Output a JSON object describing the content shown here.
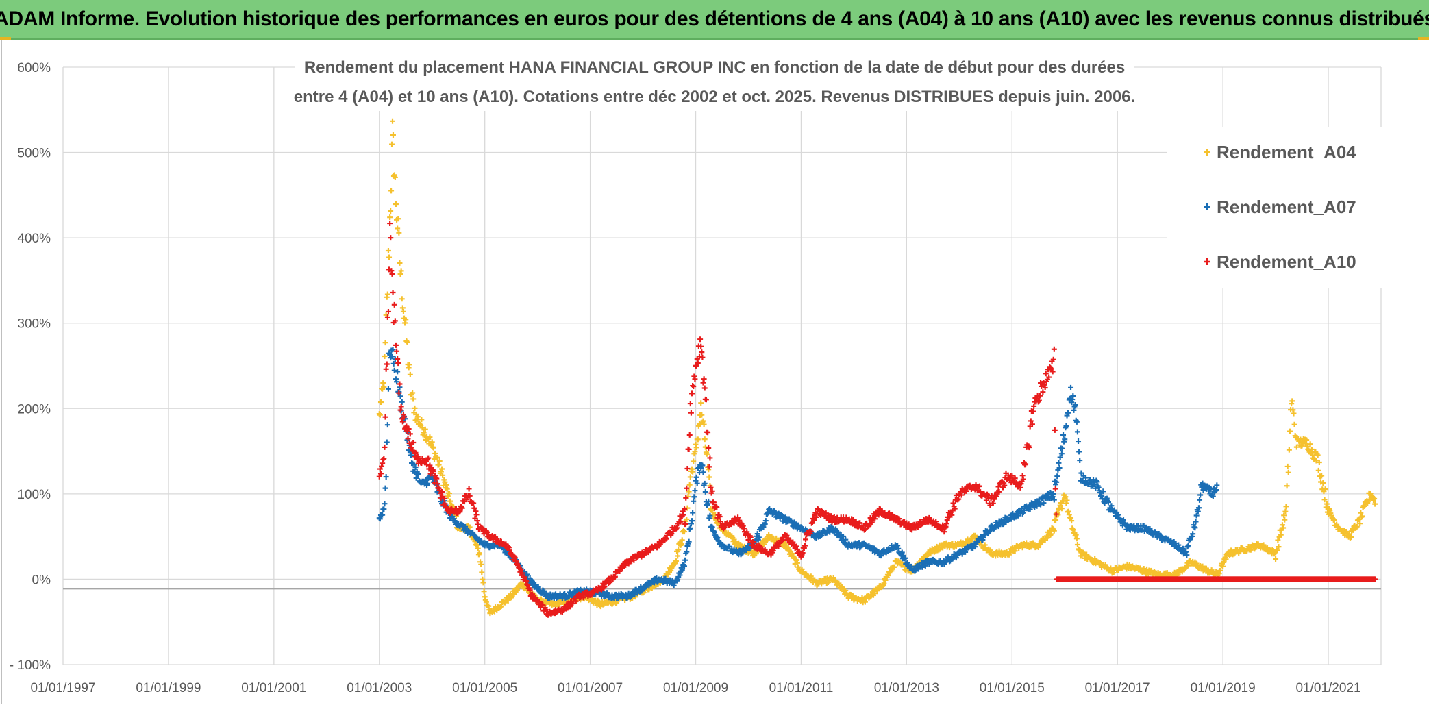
{
  "banner": {
    "title": "ADAM Informe. Evolution historique des performances en euros pour des détentions de 4 ans (A04) à 10 ans (A10) avec les revenus connus distribués"
  },
  "chart_data": {
    "type": "scatter",
    "title_line1": "Rendement du placement HANA FINANCIAL GROUP INC en fonction de la date de début pour des durées",
    "title_line2": "entre 4 (A04) et 10 ans (A10). Cotations entre déc 2002 et oct. 2025. Revenus DISTRIBUES depuis juin. 2006.",
    "xlabel": "",
    "ylabel": "",
    "x_range": [
      "01/01/1997",
      "01/01/2022"
    ],
    "ylim": [
      -100,
      600
    ],
    "y_ticks": [
      "600%",
      "500%",
      "400%",
      "300%",
      "200%",
      "100%",
      "0%",
      "- 100%"
    ],
    "y_tick_values": [
      600,
      500,
      400,
      300,
      200,
      100,
      0,
      -100
    ],
    "x_ticks": [
      "01/01/1997",
      "01/01/1999",
      "01/01/2001",
      "01/01/2003",
      "01/01/2005",
      "01/01/2007",
      "01/01/2009",
      "01/01/2011",
      "01/01/2013",
      "01/01/2015",
      "01/01/2017",
      "01/01/2019",
      "01/01/2021"
    ],
    "x_tick_years": [
      1997,
      1999,
      2001,
      2003,
      2005,
      2007,
      2009,
      2011,
      2013,
      2015,
      2017,
      2019,
      2021
    ],
    "grid": true,
    "legend_position": "top-right",
    "series": [
      {
        "name": "Rendement_A04",
        "color": "#f5c12e",
        "points": [
          [
            2003.0,
            190
          ],
          [
            2003.1,
            240
          ],
          [
            2003.2,
            420
          ],
          [
            2003.25,
            520
          ],
          [
            2003.3,
            460
          ],
          [
            2003.4,
            360
          ],
          [
            2003.5,
            290
          ],
          [
            2003.6,
            220
          ],
          [
            2003.7,
            190
          ],
          [
            2003.9,
            170
          ],
          [
            2004.1,
            140
          ],
          [
            2004.3,
            100
          ],
          [
            2004.5,
            60
          ],
          [
            2004.7,
            60
          ],
          [
            2004.9,
            30
          ],
          [
            2005.0,
            -20
          ],
          [
            2005.1,
            -40
          ],
          [
            2005.3,
            -30
          ],
          [
            2005.5,
            -20
          ],
          [
            2005.7,
            -5
          ],
          [
            2006.0,
            -25
          ],
          [
            2006.3,
            -30
          ],
          [
            2006.6,
            -25
          ],
          [
            2006.9,
            -20
          ],
          [
            2007.2,
            -30
          ],
          [
            2007.5,
            -25
          ],
          [
            2007.8,
            -20
          ],
          [
            2008.1,
            -10
          ],
          [
            2008.4,
            0
          ],
          [
            2008.6,
            20
          ],
          [
            2008.8,
            60
          ],
          [
            2008.9,
            120
          ],
          [
            2009.0,
            150
          ],
          [
            2009.1,
            200
          ],
          [
            2009.2,
            150
          ],
          [
            2009.3,
            80
          ],
          [
            2009.5,
            60
          ],
          [
            2009.8,
            40
          ],
          [
            2010.1,
            30
          ],
          [
            2010.4,
            50
          ],
          [
            2010.7,
            40
          ],
          [
            2011.0,
            10
          ],
          [
            2011.3,
            -5
          ],
          [
            2011.6,
            0
          ],
          [
            2011.9,
            -20
          ],
          [
            2012.2,
            -25
          ],
          [
            2012.5,
            -10
          ],
          [
            2012.8,
            20
          ],
          [
            2013.1,
            10
          ],
          [
            2013.4,
            30
          ],
          [
            2013.7,
            40
          ],
          [
            2014.0,
            40
          ],
          [
            2014.3,
            50
          ],
          [
            2014.6,
            30
          ],
          [
            2014.9,
            30
          ],
          [
            2015.2,
            40
          ],
          [
            2015.5,
            40
          ],
          [
            2015.8,
            60
          ],
          [
            2016.0,
            100
          ],
          [
            2016.1,
            70
          ],
          [
            2016.3,
            30
          ],
          [
            2016.6,
            20
          ],
          [
            2016.9,
            10
          ],
          [
            2017.2,
            15
          ],
          [
            2017.5,
            10
          ],
          [
            2017.8,
            5
          ],
          [
            2018.1,
            5
          ],
          [
            2018.4,
            20
          ],
          [
            2018.7,
            10
          ],
          [
            2018.9,
            5
          ],
          [
            2019.1,
            30
          ],
          [
            2019.4,
            35
          ],
          [
            2019.7,
            40
          ],
          [
            2020.0,
            30
          ],
          [
            2020.2,
            80
          ],
          [
            2020.3,
            210
          ],
          [
            2020.4,
            160
          ],
          [
            2020.6,
            160
          ],
          [
            2020.8,
            140
          ],
          [
            2021.0,
            80
          ],
          [
            2021.2,
            60
          ],
          [
            2021.4,
            50
          ],
          [
            2021.6,
            70
          ],
          [
            2021.8,
            100
          ],
          [
            2021.9,
            90
          ]
        ]
      },
      {
        "name": "Rendement_A07",
        "color": "#1a6eb5",
        "points": [
          [
            2003.0,
            70
          ],
          [
            2003.1,
            85
          ],
          [
            2003.2,
            270
          ],
          [
            2003.3,
            250
          ],
          [
            2003.4,
            210
          ],
          [
            2003.5,
            180
          ],
          [
            2003.6,
            140
          ],
          [
            2003.8,
            110
          ],
          [
            2004.0,
            120
          ],
          [
            2004.2,
            90
          ],
          [
            2004.4,
            70
          ],
          [
            2004.6,
            60
          ],
          [
            2004.8,
            50
          ],
          [
            2005.0,
            40
          ],
          [
            2005.3,
            40
          ],
          [
            2005.6,
            20
          ],
          [
            2005.9,
            -5
          ],
          [
            2006.2,
            -20
          ],
          [
            2006.5,
            -20
          ],
          [
            2006.8,
            -15
          ],
          [
            2007.1,
            -15
          ],
          [
            2007.4,
            -20
          ],
          [
            2007.7,
            -20
          ],
          [
            2008.0,
            -10
          ],
          [
            2008.3,
            0
          ],
          [
            2008.6,
            -5
          ],
          [
            2008.8,
            20
          ],
          [
            2008.9,
            60
          ],
          [
            2009.0,
            110
          ],
          [
            2009.1,
            140
          ],
          [
            2009.3,
            60
          ],
          [
            2009.5,
            40
          ],
          [
            2009.8,
            30
          ],
          [
            2010.1,
            40
          ],
          [
            2010.4,
            80
          ],
          [
            2010.7,
            70
          ],
          [
            2011.0,
            60
          ],
          [
            2011.3,
            50
          ],
          [
            2011.6,
            60
          ],
          [
            2011.9,
            40
          ],
          [
            2012.2,
            40
          ],
          [
            2012.5,
            30
          ],
          [
            2012.8,
            40
          ],
          [
            2013.1,
            10
          ],
          [
            2013.4,
            20
          ],
          [
            2013.7,
            20
          ],
          [
            2014.0,
            30
          ],
          [
            2014.3,
            40
          ],
          [
            2014.6,
            60
          ],
          [
            2014.9,
            70
          ],
          [
            2015.2,
            80
          ],
          [
            2015.5,
            90
          ],
          [
            2015.8,
            100
          ],
          [
            2016.0,
            170
          ],
          [
            2016.1,
            220
          ],
          [
            2016.2,
            200
          ],
          [
            2016.3,
            120
          ],
          [
            2016.6,
            110
          ],
          [
            2016.9,
            80
          ],
          [
            2017.2,
            60
          ],
          [
            2017.5,
            60
          ],
          [
            2017.8,
            50
          ],
          [
            2018.1,
            40
          ],
          [
            2018.3,
            30
          ],
          [
            2018.5,
            70
          ],
          [
            2018.6,
            110
          ],
          [
            2018.8,
            100
          ],
          [
            2018.9,
            110
          ]
        ]
      },
      {
        "name": "Rendement_A10",
        "color": "#e81c1c",
        "points": [
          [
            2003.0,
            120
          ],
          [
            2003.1,
            140
          ],
          [
            2003.2,
            400
          ],
          [
            2003.3,
            290
          ],
          [
            2003.4,
            200
          ],
          [
            2003.5,
            180
          ],
          [
            2003.7,
            140
          ],
          [
            2003.9,
            140
          ],
          [
            2004.1,
            110
          ],
          [
            2004.3,
            80
          ],
          [
            2004.5,
            80
          ],
          [
            2004.7,
            100
          ],
          [
            2004.9,
            60
          ],
          [
            2005.1,
            50
          ],
          [
            2005.4,
            40
          ],
          [
            2005.6,
            20
          ],
          [
            2005.9,
            -20
          ],
          [
            2006.2,
            -40
          ],
          [
            2006.5,
            -35
          ],
          [
            2006.8,
            -20
          ],
          [
            2007.1,
            -15
          ],
          [
            2007.4,
            0
          ],
          [
            2007.7,
            20
          ],
          [
            2008.0,
            30
          ],
          [
            2008.3,
            40
          ],
          [
            2008.6,
            60
          ],
          [
            2008.8,
            80
          ],
          [
            2008.9,
            200
          ],
          [
            2009.0,
            250
          ],
          [
            2009.1,
            280
          ],
          [
            2009.2,
            200
          ],
          [
            2009.3,
            100
          ],
          [
            2009.5,
            60
          ],
          [
            2009.8,
            70
          ],
          [
            2010.1,
            40
          ],
          [
            2010.4,
            30
          ],
          [
            2010.7,
            50
          ],
          [
            2011.0,
            30
          ],
          [
            2011.3,
            80
          ],
          [
            2011.6,
            70
          ],
          [
            2011.9,
            70
          ],
          [
            2012.2,
            60
          ],
          [
            2012.5,
            80
          ],
          [
            2012.8,
            70
          ],
          [
            2013.1,
            60
          ],
          [
            2013.4,
            70
          ],
          [
            2013.7,
            60
          ],
          [
            2014.0,
            100
          ],
          [
            2014.3,
            110
          ],
          [
            2014.6,
            90
          ],
          [
            2014.9,
            120
          ],
          [
            2015.2,
            110
          ],
          [
            2015.4,
            200
          ],
          [
            2015.6,
            230
          ],
          [
            2015.8,
            250
          ],
          [
            2015.85,
            0
          ],
          [
            2016.3,
            0
          ],
          [
            2016.8,
            0
          ],
          [
            2017.3,
            0
          ],
          [
            2017.8,
            0
          ],
          [
            2018.3,
            0
          ],
          [
            2018.8,
            0
          ],
          [
            2019.3,
            0
          ],
          [
            2019.8,
            0
          ],
          [
            2020.3,
            0
          ],
          [
            2020.8,
            0
          ],
          [
            2021.3,
            0
          ],
          [
            2021.9,
            0
          ]
        ]
      }
    ]
  }
}
